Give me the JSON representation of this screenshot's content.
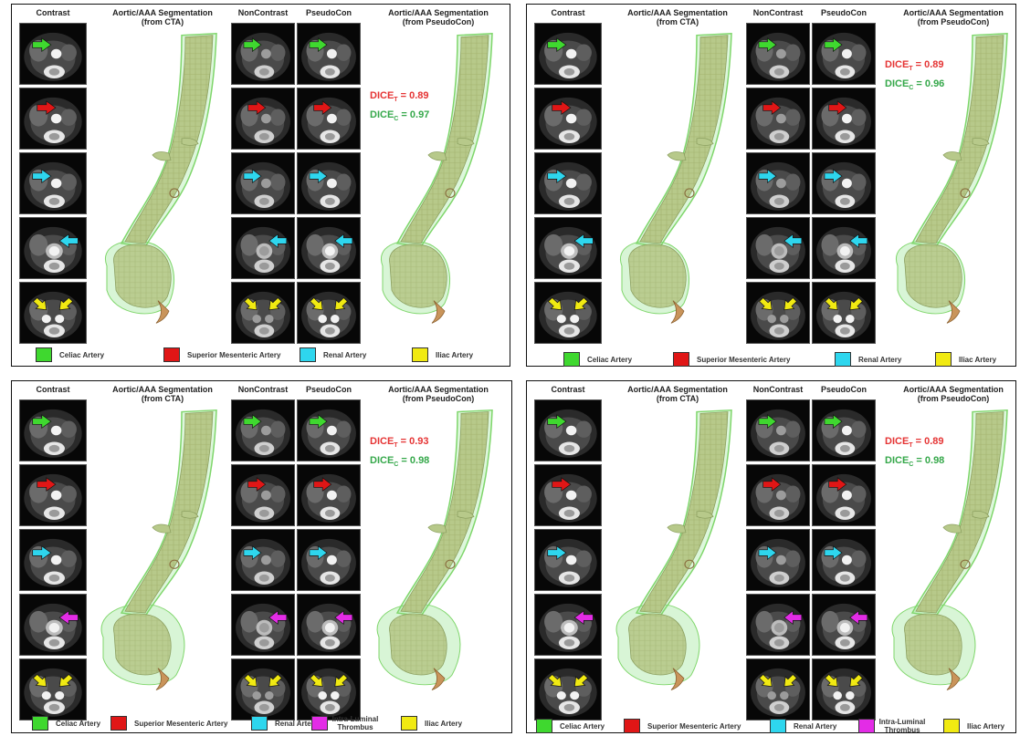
{
  "headers": {
    "contrast": "Contrast",
    "seg_cta_line1": "Aortic/AAA Segmentation",
    "seg_cta_line2": "(from CTA)",
    "noncontrast": "NonContrast",
    "pseudocon": "PseudoCon",
    "seg_pseudo_line1": "Aortic/AAA Segmentation",
    "seg_pseudo_line2": "(from PseudoCon)"
  },
  "dice": {
    "prefix": "DICE",
    "t_sub": "T",
    "c_sub": "C",
    "joiner": " = "
  },
  "colors": {
    "celiac": "#3fd82f",
    "sma": "#e01616",
    "renal": "#2ed6ee",
    "thrombus": "#e32ce6",
    "iliac": "#f1ea12",
    "mesh_fill": "#b7c98a",
    "mesh_stroke": "#7fd66b"
  },
  "panels": [
    {
      "dice_t": "0.89",
      "dice_c": "0.97",
      "arrows": [
        "celiac",
        "sma",
        "renal",
        "renal",
        "iliac"
      ],
      "legend": [
        {
          "color": "celiac",
          "label": "Celiac Artery"
        },
        {
          "color": "sma",
          "label": "Superior Mesenteric Artery"
        },
        {
          "color": "renal",
          "label": "Renal Artery"
        },
        {
          "color": "iliac",
          "label": "Iliac Artery"
        }
      ]
    },
    {
      "dice_t": "0.89",
      "dice_c": "0.96",
      "arrows": [
        "celiac",
        "sma",
        "renal",
        "renal",
        "iliac"
      ],
      "legend": [
        {
          "color": "celiac",
          "label": "Celiac Artery"
        },
        {
          "color": "sma",
          "label": "Superior Mesenteric Artery"
        },
        {
          "color": "renal",
          "label": "Renal Artery"
        },
        {
          "color": "iliac",
          "label": "Iliac Artery"
        }
      ]
    },
    {
      "dice_t": "0.93",
      "dice_c": "0.98",
      "arrows": [
        "celiac",
        "sma",
        "renal",
        "thrombus",
        "iliac"
      ],
      "legend": [
        {
          "color": "celiac",
          "label": "Celiac Artery"
        },
        {
          "color": "sma",
          "label": "Superior Mesenteric Artery"
        },
        {
          "color": "renal",
          "label": "Renal Artery"
        },
        {
          "color": "thrombus",
          "label": "Intra-Luminal Thrombus"
        },
        {
          "color": "iliac",
          "label": "Iliac Artery"
        }
      ]
    },
    {
      "dice_t": "0.89",
      "dice_c": "0.98",
      "arrows": [
        "celiac",
        "sma",
        "renal",
        "thrombus",
        "iliac"
      ],
      "legend": [
        {
          "color": "celiac",
          "label": "Celiac Artery"
        },
        {
          "color": "sma",
          "label": "Superior Mesenteric Artery"
        },
        {
          "color": "renal",
          "label": "Renal Artery"
        },
        {
          "color": "thrombus",
          "label": "Intra-Luminal Thrombus"
        },
        {
          "color": "iliac",
          "label": "Iliac Artery"
        }
      ]
    }
  ]
}
